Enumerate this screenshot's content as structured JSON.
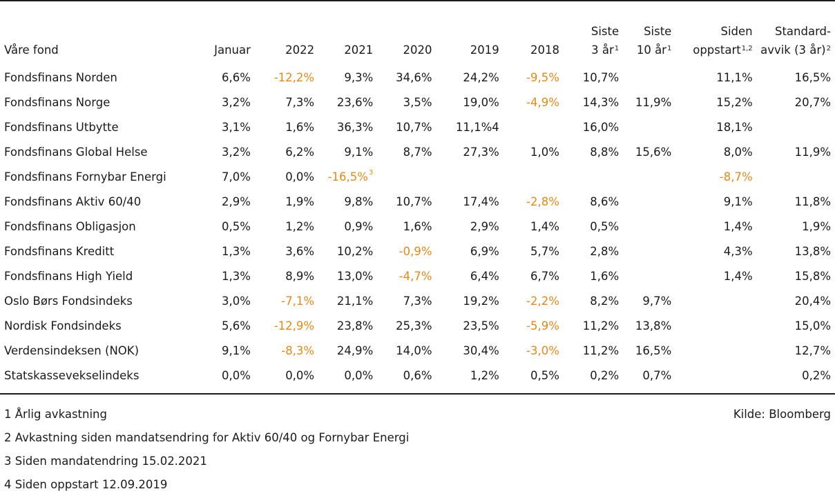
{
  "table": {
    "headers": {
      "fund": "Våre fond",
      "jan": "Januar",
      "y2022": "2022",
      "y2021": "2021",
      "y2020": "2020",
      "y2019": "2019",
      "y2018": "2018",
      "last3_line1": "Siste",
      "last3_line2": "3 år",
      "last3_sup": "1",
      "last10_line1": "Siste",
      "last10_line2": "10 år",
      "last10_sup": "1",
      "since_line1": "Siden",
      "since_line2": "oppstart",
      "since_sup": "1,2",
      "std_line1": "Standard-",
      "std_line2": "avvik (3 år)",
      "std_sup": "2"
    },
    "rows": [
      {
        "name": "Fondsfinans Norden",
        "jan": "6,6%",
        "y2022": "-12,2%",
        "y2021": "9,3%",
        "y2020": "34,6%",
        "y2019": "24,2%",
        "y2018": "-9,5%",
        "last3": "10,7%",
        "last10": "",
        "since": "11,1%",
        "std": "16,5%"
      },
      {
        "name": "Fondsfinans Norge",
        "jan": "3,2%",
        "y2022": "7,3%",
        "y2021": "23,6%",
        "y2020": "3,5%",
        "y2019": "19,0%",
        "y2018": "-4,9%",
        "last3": "14,3%",
        "last10": "11,9%",
        "since": "15,2%",
        "std": "20,7%"
      },
      {
        "name": "Fondsfinans Utbytte",
        "jan": "3,1%",
        "y2022": "1,6%",
        "y2021": "36,3%",
        "y2020": "10,7%",
        "y2019": "11,1%4",
        "y2018": "",
        "last3": "16,0%",
        "last10": "",
        "since": "18,1%",
        "std": ""
      },
      {
        "name": "Fondsfinans Global Helse",
        "jan": "3,2%",
        "y2022": "6,2%",
        "y2021": "9,1%",
        "y2020": "8,7%",
        "y2019": "27,3%",
        "y2018": "1,0%",
        "last3": "8,8%",
        "last10": "15,6%",
        "since": "8,0%",
        "std": "11,9%"
      },
      {
        "name": "Fondsfinans Fornybar Energi",
        "jan": "7,0%",
        "y2022": "0,0%",
        "y2021": "-16,5%",
        "y2021_sup": "3",
        "y2020": "",
        "y2019": "",
        "y2018": "",
        "last3": "",
        "last10": "",
        "since": "-8,7%",
        "std": ""
      },
      {
        "name": "Fondsfinans Aktiv 60/40",
        "jan": "2,9%",
        "y2022": "1,9%",
        "y2021": "9,8%",
        "y2020": "10,7%",
        "y2019": "17,4%",
        "y2018": "-2,8%",
        "last3": "8,6%",
        "last10": "",
        "since": "9,1%",
        "std": "11,8%"
      },
      {
        "name": "Fondsfinans Obligasjon",
        "jan": "0,5%",
        "y2022": "1,2%",
        "y2021": "0,9%",
        "y2020": "1,6%",
        "y2019": "2,9%",
        "y2018": "1,4%",
        "last3": "0,5%",
        "last10": "",
        "since": "1,4%",
        "std": "1,9%"
      },
      {
        "name": "Fondsfinans Kreditt",
        "jan": "1,3%",
        "y2022": "3,6%",
        "y2021": "10,2%",
        "y2020": "-0,9%",
        "y2019": "6,9%",
        "y2018": "5,7%",
        "last3": "2,8%",
        "last10": "",
        "since": "4,3%",
        "std": "13,8%"
      },
      {
        "name": "Fondsfinans High Yield",
        "jan": "1,3%",
        "y2022": "8,9%",
        "y2021": "13,0%",
        "y2020": "-4,7%",
        "y2019": "6,4%",
        "y2018": "6,7%",
        "last3": "1,6%",
        "last10": "",
        "since": "1,4%",
        "std": "15,8%"
      },
      {
        "name": "Oslo Børs Fondsindeks",
        "jan": "3,0%",
        "y2022": "-7,1%",
        "y2021": "21,1%",
        "y2020": "7,3%",
        "y2019": "19,2%",
        "y2018": "-2,2%",
        "last3": "8,2%",
        "last10": "9,7%",
        "since": "",
        "std": "20,4%"
      },
      {
        "name": "Nordisk Fondsindeks",
        "jan": "5,6%",
        "y2022": "-12,9%",
        "y2021": "23,8%",
        "y2020": "25,3%",
        "y2019": "23,5%",
        "y2018": "-5,9%",
        "last3": "11,2%",
        "last10": "13,8%",
        "since": "",
        "std": "15,0%"
      },
      {
        "name": "Verdensindeksen (NOK)",
        "jan": "9,1%",
        "y2022": "-8,3%",
        "y2021": "24,9%",
        "y2020": "14,0%",
        "y2019": "30,4%",
        "y2018": "-3,0%",
        "last3": "11,2%",
        "last10": "16,5%",
        "since": "",
        "std": "12,7%"
      },
      {
        "name": "Statskasseveksel­indeks",
        "jan": "0,0%",
        "y2022": "0,0%",
        "y2021": "0,0%",
        "y2020": "0,6%",
        "y2019": "1,2%",
        "y2018": "0,5%",
        "last3": "0,2%",
        "last10": "0,7%",
        "since": "",
        "std": "0,2%"
      }
    ]
  },
  "footnotes": [
    "1 Årlig avkastning",
    "2 Avkastning siden mandatsendring for Aktiv 60/40 og Fornybar Energi",
    "3 Siden mandatendring 15.02.2021",
    "4 Siden oppstart 12.09.2019"
  ],
  "source": "Kilde: Bloomberg",
  "colors": {
    "negative": "#e08a1e",
    "text": "#1a1a1a",
    "rule": "#1a1a1a"
  }
}
